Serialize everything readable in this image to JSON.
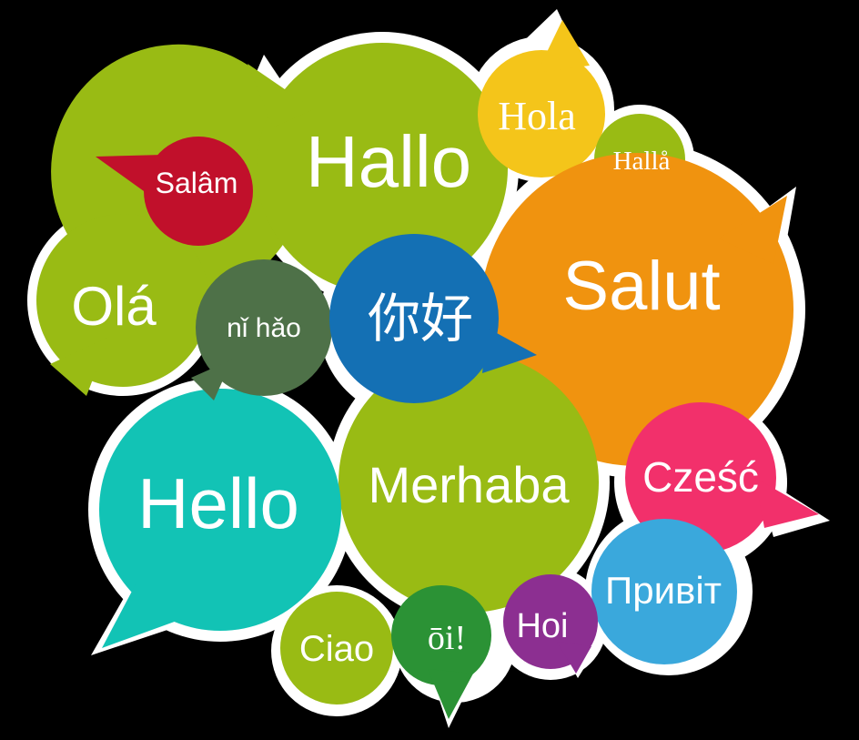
{
  "background_color": "#000000",
  "outline_color": "#ffffff",
  "bubbles": [
    {
      "id": "hallo",
      "text": "Hallo",
      "color": "#99bb14"
    },
    {
      "id": "hola",
      "text": "Hola",
      "color": "#f4c51a"
    },
    {
      "id": "halla",
      "text": "Hallå",
      "color": "#99bb14"
    },
    {
      "id": "salam",
      "text": "Salâm",
      "color": "#c1102b"
    },
    {
      "id": "ola",
      "text": "Olá",
      "color": "#99bb14"
    },
    {
      "id": "salut",
      "text": "Salut",
      "color": "#f0930f"
    },
    {
      "id": "nihao",
      "text": "nǐ hǎo",
      "color": "#4e7148"
    },
    {
      "id": "nihao-cn",
      "text": "你好",
      "color": "#1470b4"
    },
    {
      "id": "hello",
      "text": "Hello",
      "color": "#12c3b5"
    },
    {
      "id": "merhaba",
      "text": "Merhaba",
      "color": "#99bb14"
    },
    {
      "id": "czesc",
      "text": "Cześć",
      "color": "#f2306b"
    },
    {
      "id": "pryvit",
      "text": "Привіт",
      "color": "#3aa8dc"
    },
    {
      "id": "hoi",
      "text": "Hoi",
      "color": "#8c2f91"
    },
    {
      "id": "oi",
      "text": "ōi!",
      "color": "#2b9235"
    },
    {
      "id": "ciao",
      "text": "Ciao",
      "color": "#99bb14"
    }
  ]
}
